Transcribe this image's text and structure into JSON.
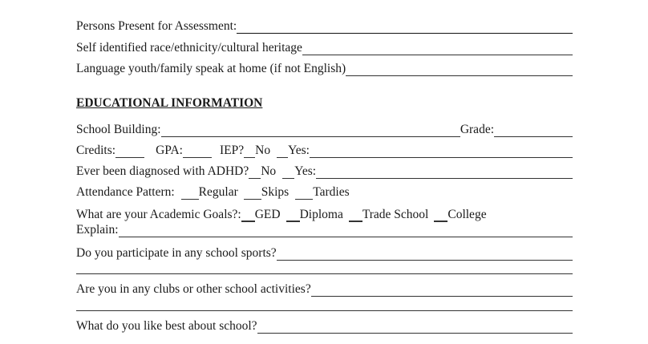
{
  "personal": {
    "persons_present": "Persons Present for Assessment:",
    "race": "Self identified race/ethnicity/cultural heritage",
    "language": "Language youth/family speak at home (if not English)"
  },
  "education": {
    "heading": "EDUCATIONAL INFORMATION",
    "school_building": "School Building:",
    "grade": "Grade:",
    "credits": "Credits:",
    "gpa": "GPA:",
    "iep": "IEP?",
    "iep_no": "No",
    "iep_yes": "Yes:",
    "adhd": "Ever been diagnosed with ADHD?",
    "adhd_no": "No",
    "adhd_yes": "Yes:",
    "attendance": "Attendance Pattern:",
    "att_regular": "Regular",
    "att_skips": "Skips",
    "att_tardies": "Tardies",
    "goals": "What are your Academic Goals?:",
    "goal_ged": "GED",
    "goal_diploma": "Diploma",
    "goal_trade": "Trade School",
    "goal_college": "College",
    "explain": "Explain:",
    "sports": "Do you participate in any school sports?",
    "clubs": "Are you in any clubs or other school activities?",
    "like_best": "What do you like best about school?"
  }
}
